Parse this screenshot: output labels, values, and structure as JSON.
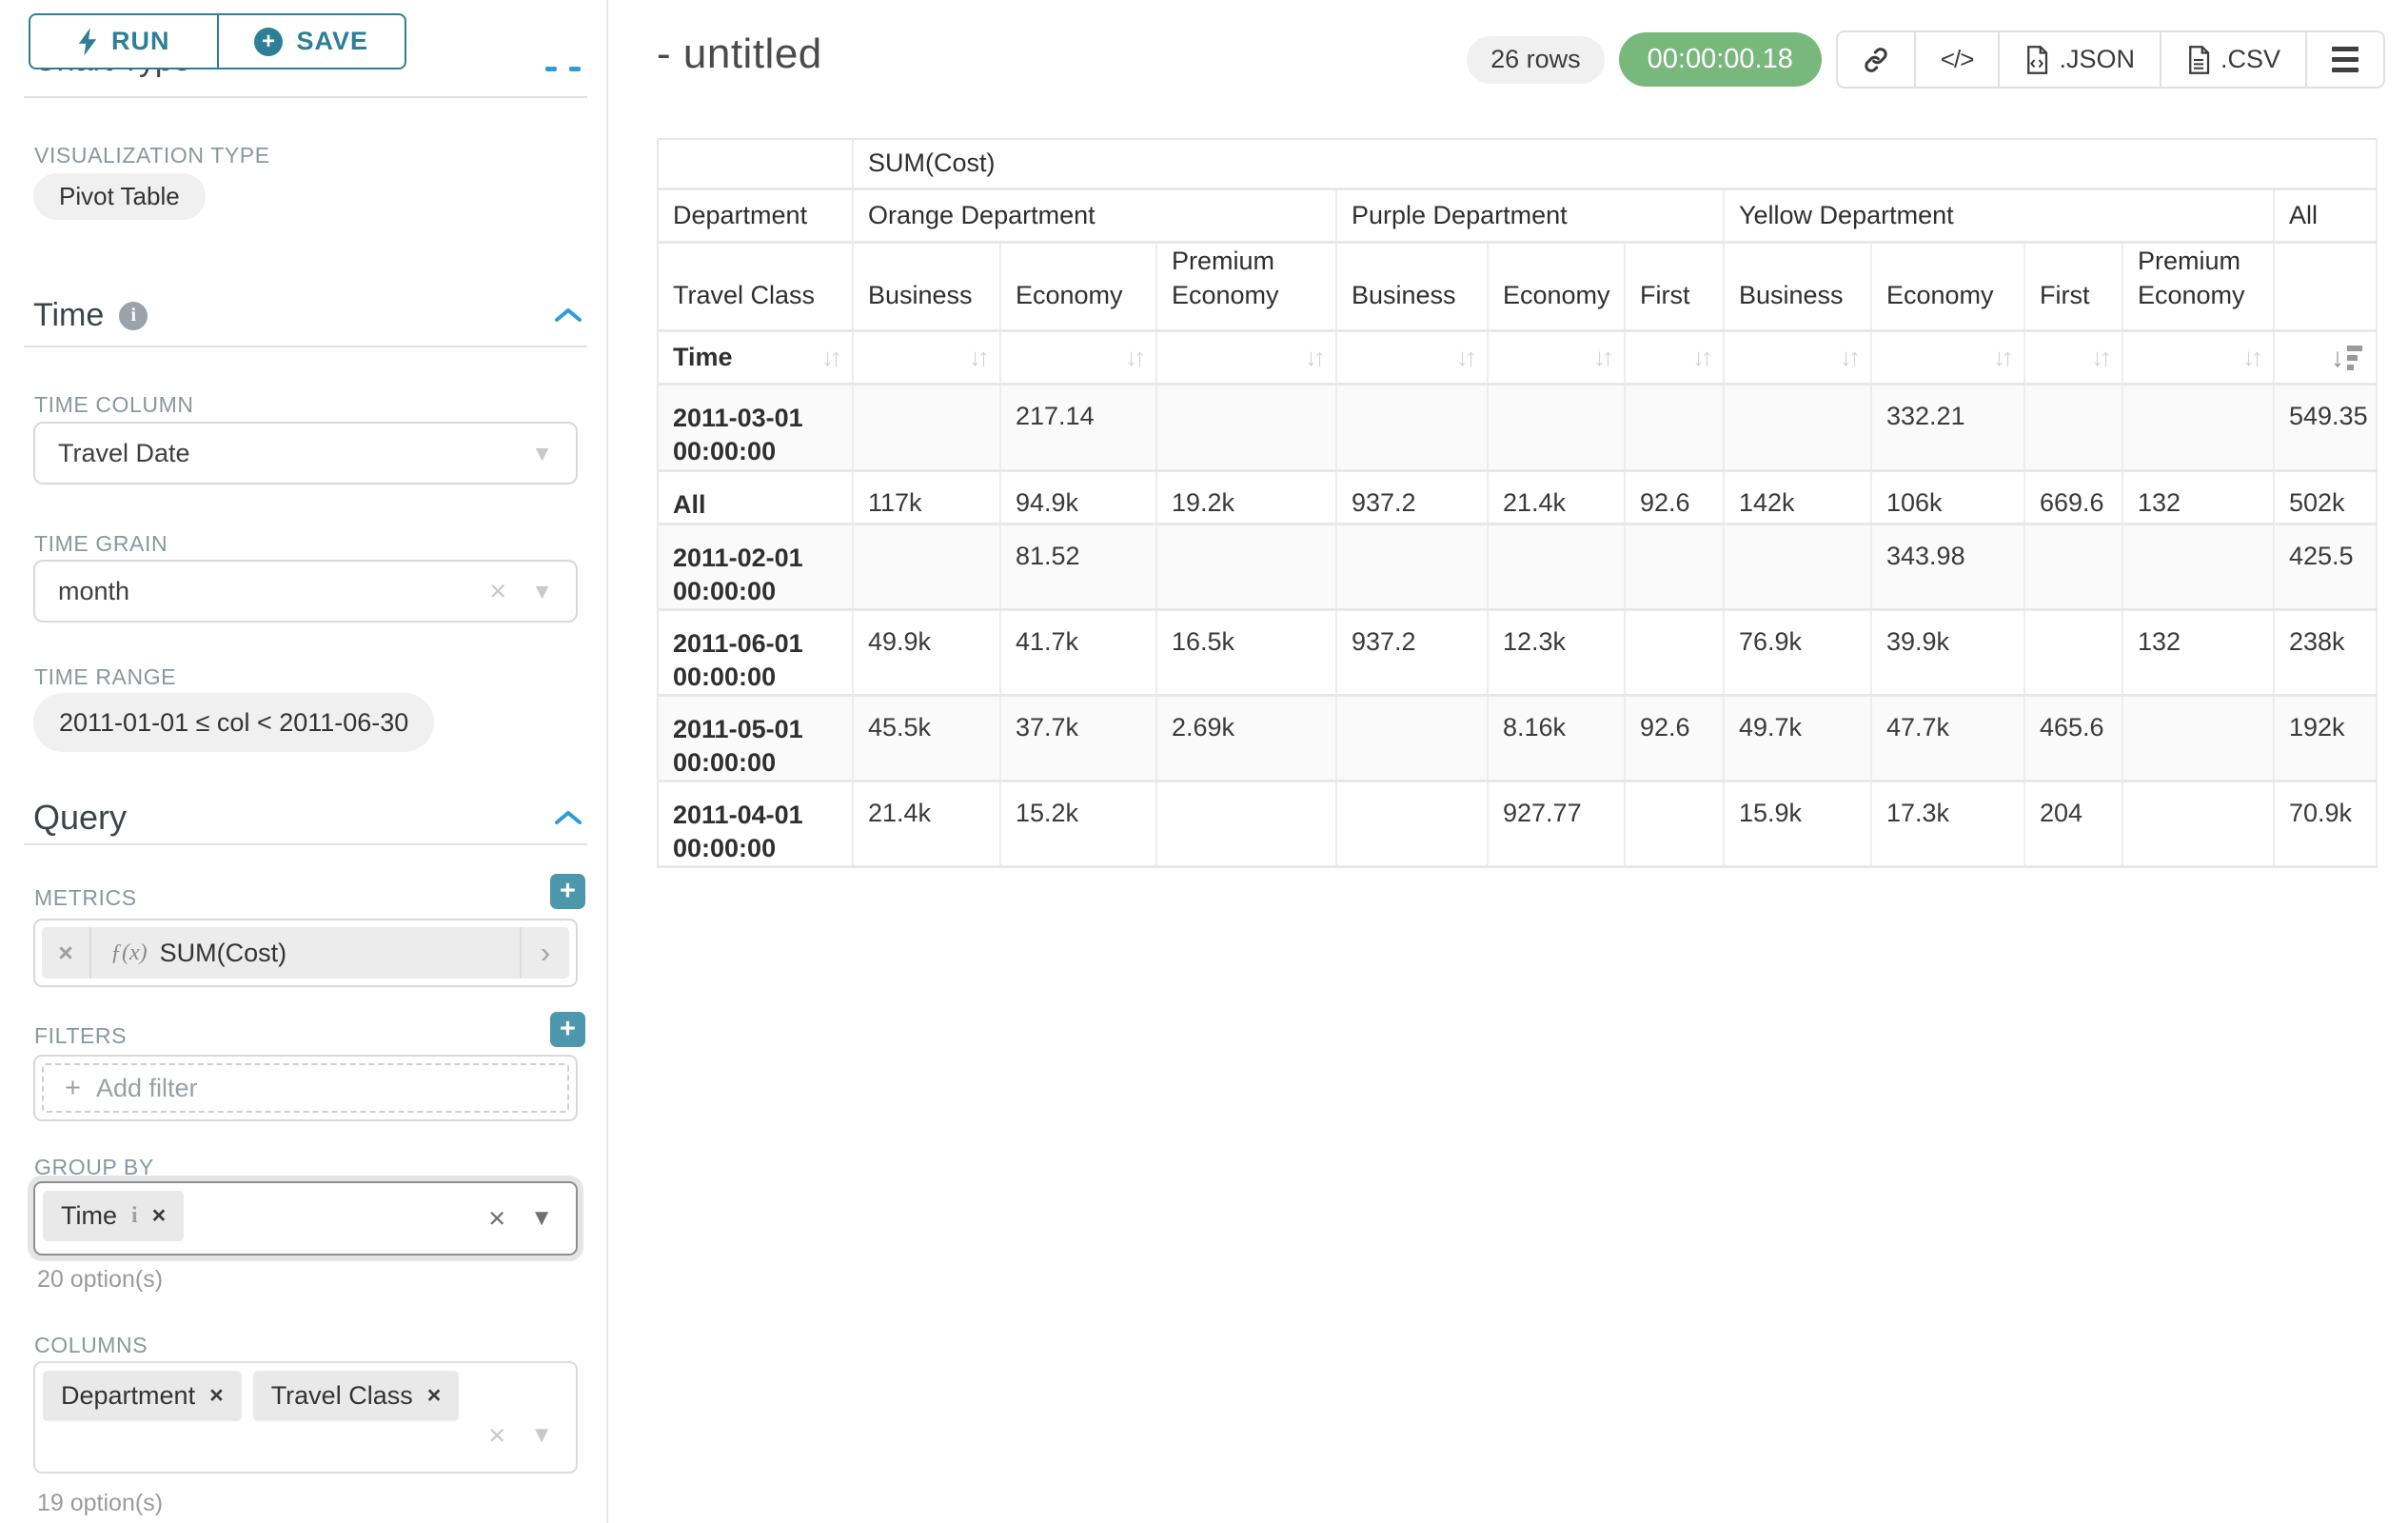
{
  "sidebar": {
    "run_label": "RUN",
    "save_label": "SAVE",
    "chart_type_heading": "Chart Type",
    "visualization_type_label": "VISUALIZATION TYPE",
    "visualization_type_value": "Pivot Table",
    "time_section": {
      "title": "Time",
      "time_column_label": "TIME COLUMN",
      "time_column_value": "Travel Date",
      "time_grain_label": "TIME GRAIN",
      "time_grain_value": "month",
      "time_range_label": "TIME RANGE",
      "time_range_value": "2011-01-01 ≤ col < 2011-06-30"
    },
    "query_section": {
      "title": "Query",
      "metrics_label": "METRICS",
      "metric_prefix": "ƒ(x)",
      "metric_value": "SUM(Cost)",
      "filters_label": "FILTERS",
      "add_filter_label": "Add filter",
      "group_by_label": "GROUP BY",
      "group_by_values": [
        "Time"
      ],
      "group_by_options_count": "20 option(s)",
      "columns_label": "COLUMNS",
      "columns_values": [
        "Department",
        "Travel Class"
      ],
      "columns_options_count": "19 option(s)"
    }
  },
  "header": {
    "title": "- untitled",
    "rows_badge": "26 rows",
    "timer": "00:00:00.18",
    "export_json_label": ".JSON",
    "export_csv_label": ".CSV",
    "code_glyph": "</>"
  },
  "table": {
    "metric_header": "SUM(Cost)",
    "department_row_label": "Department",
    "department_groups": [
      {
        "label": "Orange Department",
        "span": 3
      },
      {
        "label": "Purple Department",
        "span": 3
      },
      {
        "label": "Yellow Department",
        "span": 4
      },
      {
        "label": "All",
        "span": 1
      }
    ],
    "travel_class_row_label": "Travel Class",
    "travel_class_headers": [
      "Business",
      "Economy",
      "Premium Economy",
      "Business",
      "Economy",
      "First",
      "Business",
      "Economy",
      "First",
      "Premium Economy",
      ""
    ],
    "time_row_label": "Time",
    "rows": [
      {
        "label": "2011-03-01 00:00:00",
        "values": [
          "",
          "217.14",
          "",
          "",
          "",
          "",
          "",
          "332.21",
          "",
          "",
          "549.35"
        ]
      },
      {
        "label": "All",
        "values": [
          "117k",
          "94.9k",
          "19.2k",
          "937.2",
          "21.4k",
          "92.6",
          "142k",
          "106k",
          "669.6",
          "132",
          "502k"
        ]
      },
      {
        "label": "2011-02-01 00:00:00",
        "values": [
          "",
          "81.52",
          "",
          "",
          "",
          "",
          "",
          "343.98",
          "",
          "",
          "425.5"
        ]
      },
      {
        "label": "2011-06-01 00:00:00",
        "values": [
          "49.9k",
          "41.7k",
          "16.5k",
          "937.2",
          "12.3k",
          "",
          "76.9k",
          "39.9k",
          "",
          "132",
          "238k"
        ]
      },
      {
        "label": "2011-05-01 00:00:00",
        "values": [
          "45.5k",
          "37.7k",
          "2.69k",
          "",
          "8.16k",
          "92.6",
          "49.7k",
          "47.7k",
          "465.6",
          "",
          "192k"
        ]
      },
      {
        "label": "2011-04-01 00:00:00",
        "values": [
          "21.4k",
          "15.2k",
          "",
          "",
          "927.77",
          "",
          "15.9k",
          "17.3k",
          "204",
          "",
          "70.9k"
        ]
      }
    ]
  },
  "colors": {
    "accent_teal": "#2d7f98",
    "timer_green": "#79b87d",
    "chevron_blue": "#2d9cdb",
    "plus_teal": "#4d97ad"
  }
}
